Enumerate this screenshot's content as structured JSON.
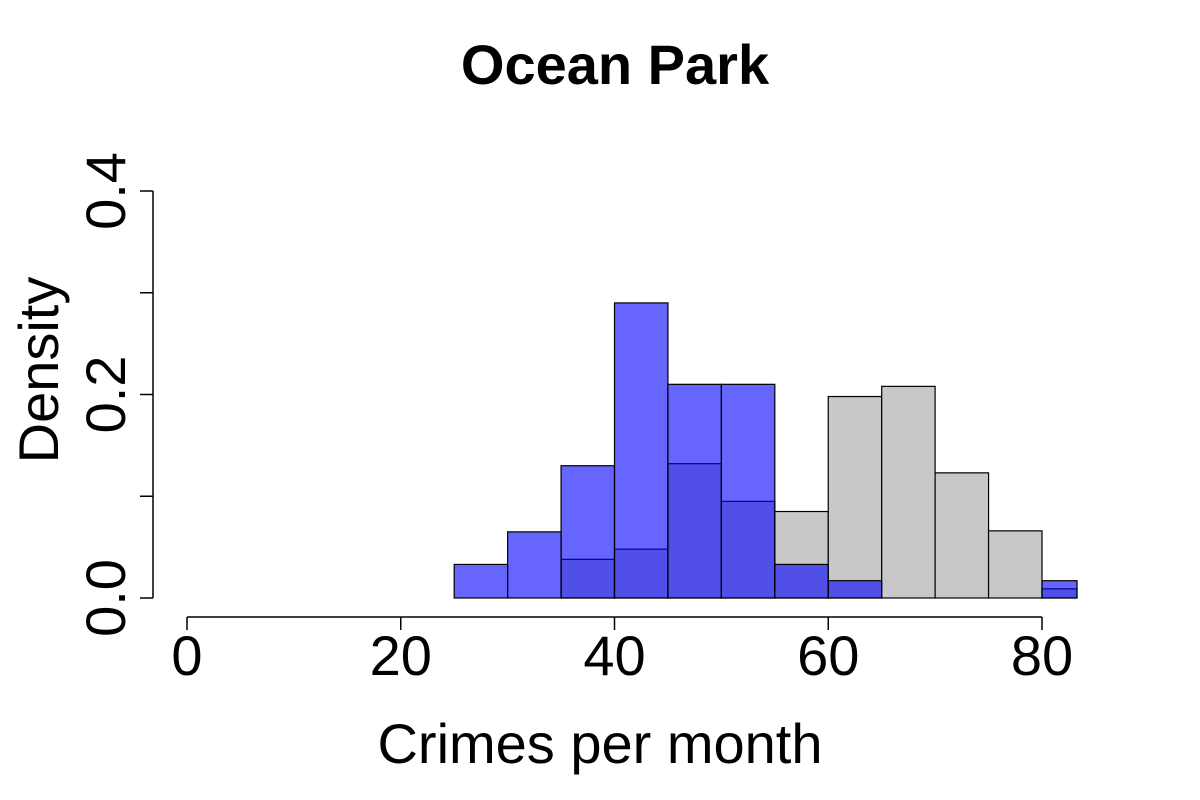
{
  "chart_data": {
    "type": "bar",
    "title": "Ocean Park",
    "xlabel": "Crimes per month",
    "ylabel": "Density",
    "xlim": [
      0,
      83
    ],
    "ylim": [
      0,
      0.4
    ],
    "x_ticks": [
      0,
      20,
      40,
      60,
      80
    ],
    "x_tick_labels": [
      "0",
      "20",
      "40",
      "60",
      "80"
    ],
    "y_ticks": [
      0,
      0.1,
      0.2,
      0.3,
      0.4
    ],
    "y_tick_labels": [
      "0.0",
      "",
      "0.2",
      "",
      "0.4"
    ],
    "bin_width": 5,
    "grid": false,
    "series": [
      {
        "color": "#c8c8c8",
        "bins": [
          {
            "x0": 0,
            "x1": 5,
            "density": 0
          },
          {
            "x0": 5,
            "x1": 10,
            "density": 0
          },
          {
            "x0": 10,
            "x1": 15,
            "density": 0
          },
          {
            "x0": 15,
            "x1": 20,
            "density": 0
          },
          {
            "x0": 20,
            "x1": 25,
            "density": 0
          },
          {
            "x0": 25,
            "x1": 30,
            "density": 0
          },
          {
            "x0": 30,
            "x1": 35,
            "density": 0
          },
          {
            "x0": 35,
            "x1": 40,
            "density": 0.038
          },
          {
            "x0": 40,
            "x1": 45,
            "density": 0.048
          },
          {
            "x0": 45,
            "x1": 50,
            "density": 0.132
          },
          {
            "x0": 50,
            "x1": 55,
            "density": 0.095
          },
          {
            "x0": 55,
            "x1": 60,
            "density": 0.085
          },
          {
            "x0": 60,
            "x1": 65,
            "density": 0.198
          },
          {
            "x0": 65,
            "x1": 70,
            "density": 0.208
          },
          {
            "x0": 70,
            "x1": 75,
            "density": 0.123
          },
          {
            "x0": 75,
            "x1": 80,
            "density": 0.066
          },
          {
            "x0": 80,
            "x1": 85,
            "density": 0.009
          }
        ]
      },
      {
        "color": "#0000ff",
        "opacity": 0.6,
        "bins": [
          {
            "x0": 0,
            "x1": 5,
            "density": 0
          },
          {
            "x0": 5,
            "x1": 10,
            "density": 0
          },
          {
            "x0": 10,
            "x1": 15,
            "density": 0
          },
          {
            "x0": 15,
            "x1": 20,
            "density": 0
          },
          {
            "x0": 20,
            "x1": 25,
            "density": 0
          },
          {
            "x0": 25,
            "x1": 30,
            "density": 0.033
          },
          {
            "x0": 30,
            "x1": 35,
            "density": 0.065
          },
          {
            "x0": 35,
            "x1": 40,
            "density": 0.13
          },
          {
            "x0": 40,
            "x1": 45,
            "density": 0.29
          },
          {
            "x0": 45,
            "x1": 50,
            "density": 0.21
          },
          {
            "x0": 50,
            "x1": 55,
            "density": 0.21
          },
          {
            "x0": 55,
            "x1": 60,
            "density": 0.033
          },
          {
            "x0": 60,
            "x1": 65,
            "density": 0.017
          },
          {
            "x0": 65,
            "x1": 70,
            "density": 0
          },
          {
            "x0": 70,
            "x1": 75,
            "density": 0
          },
          {
            "x0": 75,
            "x1": 80,
            "density": 0
          },
          {
            "x0": 80,
            "x1": 85,
            "density": 0.017
          }
        ]
      }
    ]
  }
}
